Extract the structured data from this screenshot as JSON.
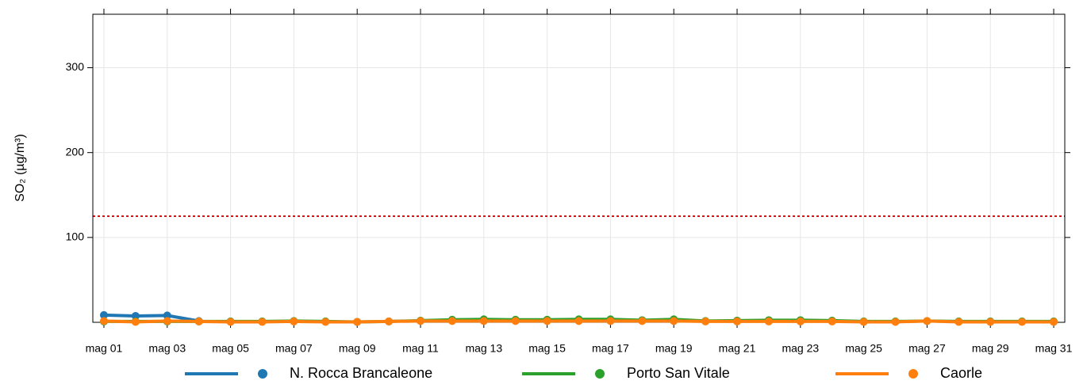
{
  "chart_data": {
    "type": "line",
    "ylabel": "SO₂ (µg/m³)",
    "categories": [
      "mag 01",
      null,
      "mag 03",
      null,
      "mag 05",
      null,
      "mag 07",
      null,
      "mag 09",
      null,
      "mag 11",
      null,
      "mag 13",
      null,
      "mag 15",
      null,
      "mag 17",
      null,
      "mag 19",
      null,
      "mag 21",
      null,
      "mag 23",
      null,
      "mag 25",
      null,
      "mag 27",
      null,
      "mag 29",
      null,
      "mag 31"
    ],
    "series": [
      {
        "name": "N. Rocca Brancaleone",
        "color": "#1f77b4",
        "values": [
          8.5,
          7.5,
          8,
          1.5,
          null,
          null,
          null,
          null,
          null,
          null,
          null,
          null,
          null,
          null,
          null,
          null,
          null,
          null,
          null,
          null,
          null,
          null,
          null,
          null,
          null,
          null,
          null,
          null,
          null,
          null,
          null
        ]
      },
      {
        "name": "Porto San Vitale",
        "color": "#2ca02c",
        "values": [
          1,
          1,
          1,
          1,
          1,
          1,
          1.5,
          1,
          0.5,
          1,
          2,
          3,
          3.5,
          3,
          3,
          3.5,
          3.5,
          2.5,
          3.5,
          1.5,
          2,
          2.5,
          2.5,
          2,
          1,
          1,
          1.5,
          1,
          1,
          1,
          1
        ]
      },
      {
        "name": "Caorle",
        "color": "#ff7f0e",
        "values": [
          1.5,
          0.5,
          1.5,
          1,
          0.5,
          0.5,
          1,
          0.5,
          0.5,
          1,
          1.5,
          1.5,
          1.5,
          1.5,
          1.5,
          1.5,
          1.5,
          1.5,
          1.5,
          1,
          1,
          1,
          1,
          1,
          0.5,
          0.5,
          1.5,
          0.5,
          0.5,
          0.5,
          0.5
        ]
      }
    ],
    "ylim": [
      0,
      363
    ],
    "yticks": [
      100,
      200,
      300
    ],
    "grid": true,
    "hline": {
      "value": 125,
      "color": "#ff0000"
    },
    "legend": "bottom"
  }
}
